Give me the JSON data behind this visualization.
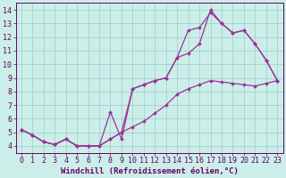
{
  "xlabel": "Windchill (Refroidissement éolien,°C)",
  "bg_color": "#cceee8",
  "line_color": "#993399",
  "marker_color": "#993399",
  "grid_color": "#99cccc",
  "xlim": [
    -0.5,
    23.5
  ],
  "ylim": [
    3.5,
    14.5
  ],
  "xticks": [
    0,
    1,
    2,
    3,
    4,
    5,
    6,
    7,
    8,
    9,
    10,
    11,
    12,
    13,
    14,
    15,
    16,
    17,
    18,
    19,
    20,
    21,
    22,
    23
  ],
  "yticks": [
    4,
    5,
    6,
    7,
    8,
    9,
    10,
    11,
    12,
    13,
    14
  ],
  "curve1_x": [
    0,
    1,
    2,
    3,
    4,
    5,
    6,
    7,
    8,
    9,
    10,
    11,
    12,
    13,
    14,
    15,
    16,
    17,
    18,
    19,
    20,
    21,
    22,
    23
  ],
  "curve1_y": [
    5.2,
    4.8,
    4.3,
    4.1,
    4.5,
    4.0,
    4.0,
    4.0,
    4.5,
    5.0,
    5.4,
    5.8,
    6.4,
    7.0,
    7.8,
    8.2,
    8.5,
    8.8,
    8.7,
    8.6,
    8.5,
    8.4,
    8.6,
    8.8
  ],
  "curve2_x": [
    0,
    1,
    2,
    3,
    4,
    5,
    6,
    7,
    8,
    9,
    10,
    11,
    12,
    13,
    14,
    15,
    16,
    17,
    18,
    19,
    20,
    21,
    22,
    23
  ],
  "curve2_y": [
    5.2,
    4.8,
    4.3,
    4.1,
    4.5,
    4.0,
    4.0,
    4.0,
    6.5,
    4.5,
    8.2,
    8.5,
    8.8,
    9.0,
    10.5,
    10.8,
    11.5,
    14.0,
    13.0,
    12.3,
    12.5,
    11.5,
    10.3,
    8.8
  ],
  "curve3_x": [
    0,
    1,
    2,
    3,
    4,
    5,
    6,
    7,
    8,
    9,
    10,
    11,
    12,
    13,
    14,
    15,
    16,
    17,
    18,
    19,
    20,
    21,
    22,
    23
  ],
  "curve3_y": [
    5.2,
    4.8,
    4.3,
    4.1,
    4.5,
    4.0,
    4.0,
    4.0,
    4.5,
    5.0,
    8.2,
    8.5,
    8.8,
    9.0,
    10.5,
    12.5,
    12.7,
    13.8,
    13.0,
    12.3,
    12.5,
    11.5,
    10.3,
    8.8
  ],
  "font_color": "#660066",
  "font_size": 6.5
}
